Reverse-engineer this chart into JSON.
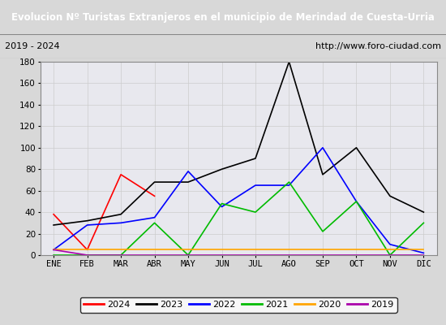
{
  "title": "Evolucion Nº Turistas Extranjeros en el municipio de Merindad de Cuesta-Urria",
  "subtitle_left": "2019 - 2024",
  "subtitle_right": "http://www.foro-ciudad.com",
  "x_labels": [
    "ENE",
    "FEB",
    "MAR",
    "ABR",
    "MAY",
    "JUN",
    "JUL",
    "AGO",
    "SEP",
    "OCT",
    "NOV",
    "DIC"
  ],
  "ylim": [
    0,
    180
  ],
  "yticks": [
    0,
    20,
    40,
    60,
    80,
    100,
    120,
    140,
    160,
    180
  ],
  "series": {
    "2024": {
      "color": "#ff0000",
      "data": [
        38,
        5,
        75,
        55,
        null,
        null,
        null,
        null,
        null,
        null,
        null,
        null
      ]
    },
    "2023": {
      "color": "#000000",
      "data": [
        28,
        32,
        38,
        68,
        68,
        80,
        90,
        180,
        75,
        100,
        55,
        40
      ]
    },
    "2022": {
      "color": "#0000ff",
      "data": [
        5,
        28,
        30,
        35,
        78,
        45,
        65,
        65,
        100,
        50,
        10,
        2
      ]
    },
    "2021": {
      "color": "#00bb00",
      "data": [
        0,
        0,
        0,
        30,
        0,
        48,
        40,
        68,
        22,
        50,
        0,
        30
      ]
    },
    "2020": {
      "color": "#ffa500",
      "data": [
        5,
        5,
        5,
        5,
        5,
        5,
        5,
        5,
        5,
        5,
        5,
        5
      ]
    },
    "2019": {
      "color": "#aa00aa",
      "data": [
        5,
        0,
        0,
        0,
        0,
        0,
        0,
        0,
        0,
        0,
        0,
        0
      ]
    }
  },
  "legend_order": [
    "2024",
    "2023",
    "2022",
    "2021",
    "2020",
    "2019"
  ],
  "fig_bg_color": "#d8d8d8",
  "plot_bg_color": "#e8e8ee",
  "title_bg_color": "#3333aa",
  "title_text_color": "#ffffff",
  "subtitle_bg_color": "#f8f8f8",
  "border_color": "#888888"
}
